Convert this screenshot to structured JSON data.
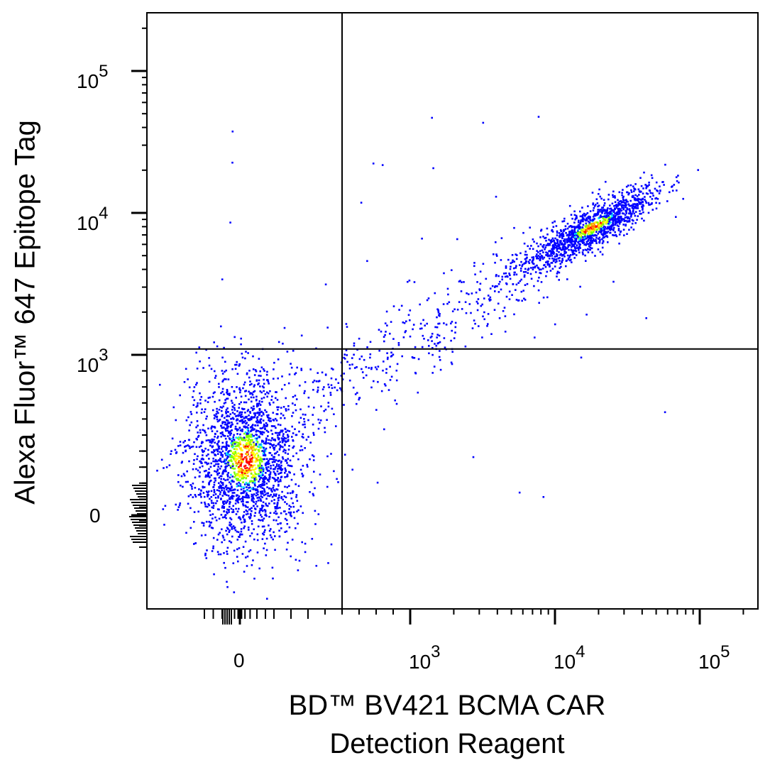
{
  "chart_data": {
    "type": "scatter",
    "style": "flow cytometry density dot plot (pseudocolor)",
    "x_axis": {
      "label_line1": "BD™ BV421 BCMA CAR",
      "label_line2": "Detection Reagent",
      "scale": "biexponential",
      "tick_labels": [
        {
          "text": "0",
          "value": 0
        },
        {
          "base": "10",
          "exp": "3",
          "value": 1000
        },
        {
          "base": "10",
          "exp": "4",
          "value": 10000
        },
        {
          "base": "10",
          "exp": "5",
          "value": 100000
        }
      ],
      "range": [
        -300,
        250000
      ]
    },
    "y_axis": {
      "label": "Alexa Fluor™ 647 Epitope Tag",
      "scale": "biexponential",
      "tick_labels": [
        {
          "text": "0",
          "value": 0
        },
        {
          "base": "10",
          "exp": "3",
          "value": 1000
        },
        {
          "base": "10",
          "exp": "4",
          "value": 10000
        },
        {
          "base": "10",
          "exp": "5",
          "value": 100000
        }
      ],
      "range": [
        -400,
        250000
      ]
    },
    "quadrant_gates": {
      "x": 600,
      "y": 1100
    },
    "populations": [
      {
        "name": "",
        "center": {
          "x": 30,
          "y": 350
        },
        "approx_events": 2200
      },
      {
        "name": "",
        "center": {
          "x": 18000,
          "y": 8000
        },
        "approx_events": 1300
      },
      {
        "name": "",
        "center": {
          "x": 2500,
          "y": 2500
        },
        "approx_events": 400
      }
    ],
    "density_colors": [
      "#0000ff",
      "#00e5ff",
      "#7fff00",
      "#ffff00",
      "#ff9900",
      "#ff0000"
    ],
    "grid": false,
    "legend": "none"
  }
}
